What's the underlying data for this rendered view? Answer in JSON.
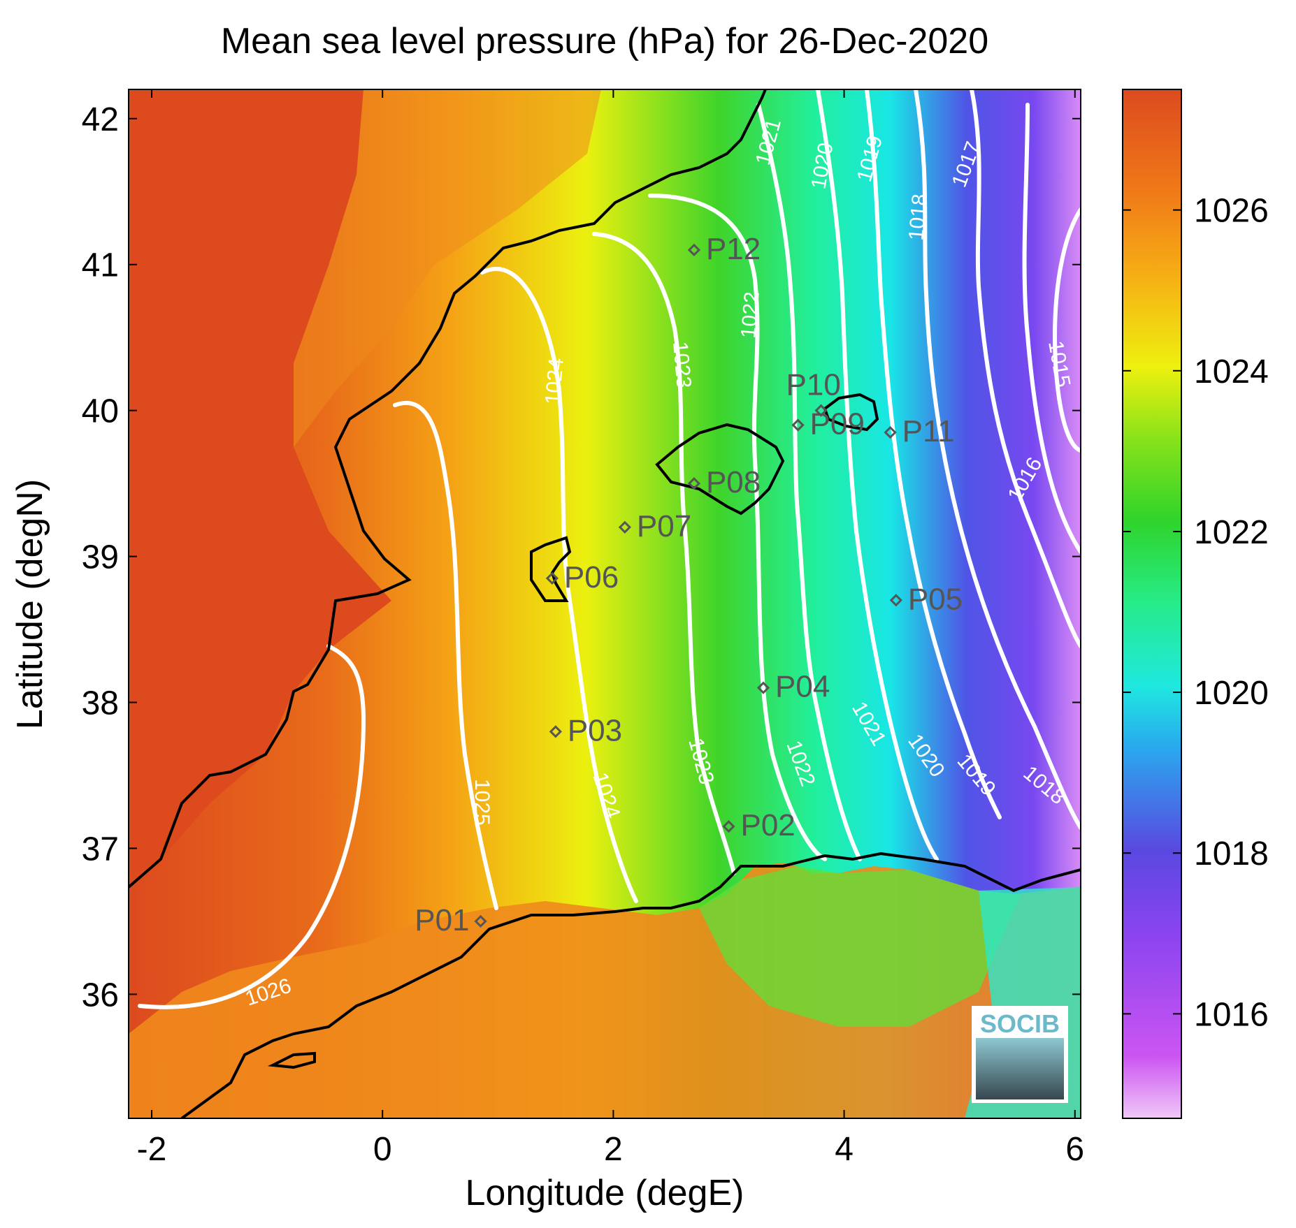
{
  "title": "Mean sea level pressure (hPa) for 26-Dec-2020",
  "xlabel": "Longitude (degE)",
  "ylabel": "Latitude (degN)",
  "x_ticks": [
    "-2",
    "0",
    "2",
    "4",
    "6"
  ],
  "y_ticks": [
    "42",
    "41",
    "40",
    "39",
    "38",
    "37",
    "36"
  ],
  "colorbar": {
    "ticks": [
      "1026",
      "1024",
      "1022",
      "1020",
      "1018",
      "1016"
    ],
    "range": [
      1014.7,
      1027.5
    ]
  },
  "logo_text": "SOCIB",
  "colors": {
    "land_high": "#dc4a1e",
    "contour": "#ffffff",
    "coastline": "#000000",
    "station": "#555555"
  },
  "chart_data": {
    "type": "map",
    "xlim": [
      -2.2,
      6.05
    ],
    "ylim": [
      35.15,
      42.2
    ],
    "stations": [
      {
        "name": "P01",
        "lon": 0.85,
        "lat": 36.5
      },
      {
        "name": "P02",
        "lon": 3.0,
        "lat": 37.15
      },
      {
        "name": "P03",
        "lon": 1.5,
        "lat": 37.8
      },
      {
        "name": "P04",
        "lon": 3.3,
        "lat": 38.1
      },
      {
        "name": "P05",
        "lon": 4.45,
        "lat": 38.7
      },
      {
        "name": "P06",
        "lon": 1.47,
        "lat": 38.85
      },
      {
        "name": "P07",
        "lon": 2.1,
        "lat": 39.2
      },
      {
        "name": "P08",
        "lon": 2.7,
        "lat": 39.5
      },
      {
        "name": "P09",
        "lon": 3.6,
        "lat": 39.9
      },
      {
        "name": "P10",
        "lon": 3.8,
        "lat": 40.0
      },
      {
        "name": "P11",
        "lon": 4.4,
        "lat": 39.85
      },
      {
        "name": "P12",
        "lon": 2.7,
        "lat": 41.1
      }
    ],
    "isobars": [
      {
        "level": "1026",
        "label_at": {
          "lon": -0.0,
          "lat": 35.95
        }
      },
      {
        "level": "1025",
        "label_at": {
          "lon": 0.85,
          "lat": 37.2
        }
      },
      {
        "level": "1024",
        "label_at": {
          "lon": 1.6,
          "lat": 39.8
        }
      },
      {
        "level": "1024",
        "label_at": {
          "lon": 1.95,
          "lat": 37.05
        }
      },
      {
        "level": "1023",
        "label_at": {
          "lon": 2.55,
          "lat": 40.15
        }
      },
      {
        "level": "1023",
        "label_at": {
          "lon": 2.85,
          "lat": 37.35
        }
      },
      {
        "level": "1022",
        "label_at": {
          "lon": 3.2,
          "lat": 40.6
        }
      },
      {
        "level": "1022",
        "label_at": {
          "lon": 3.7,
          "lat": 37.5
        }
      },
      {
        "level": "1021",
        "label_at": {
          "lon": 3.35,
          "lat": 41.6
        }
      },
      {
        "level": "1021",
        "label_at": {
          "lon": 4.05,
          "lat": 37.85
        }
      },
      {
        "level": "1020",
        "label_at": {
          "lon": 3.9,
          "lat": 41.55
        }
      },
      {
        "level": "1020",
        "label_at": {
          "lon": 4.6,
          "lat": 37.45
        }
      },
      {
        "level": "1019",
        "label_at": {
          "lon": 4.3,
          "lat": 41.55
        }
      },
      {
        "level": "1019",
        "label_at": {
          "lon": 5.05,
          "lat": 37.4
        }
      },
      {
        "level": "1018",
        "label_at": {
          "lon": 4.75,
          "lat": 41.15
        }
      },
      {
        "level": "1018",
        "label_at": {
          "lon": 5.6,
          "lat": 37.3
        }
      },
      {
        "level": "1017",
        "label_at": {
          "lon": 5.3,
          "lat": 41.65
        }
      },
      {
        "level": "1016",
        "label_at": {
          "lon": 5.75,
          "lat": 39.4
        }
      },
      {
        "level": "1015",
        "label_at": {
          "lon": 5.85,
          "lat": 40.1
        }
      }
    ]
  }
}
